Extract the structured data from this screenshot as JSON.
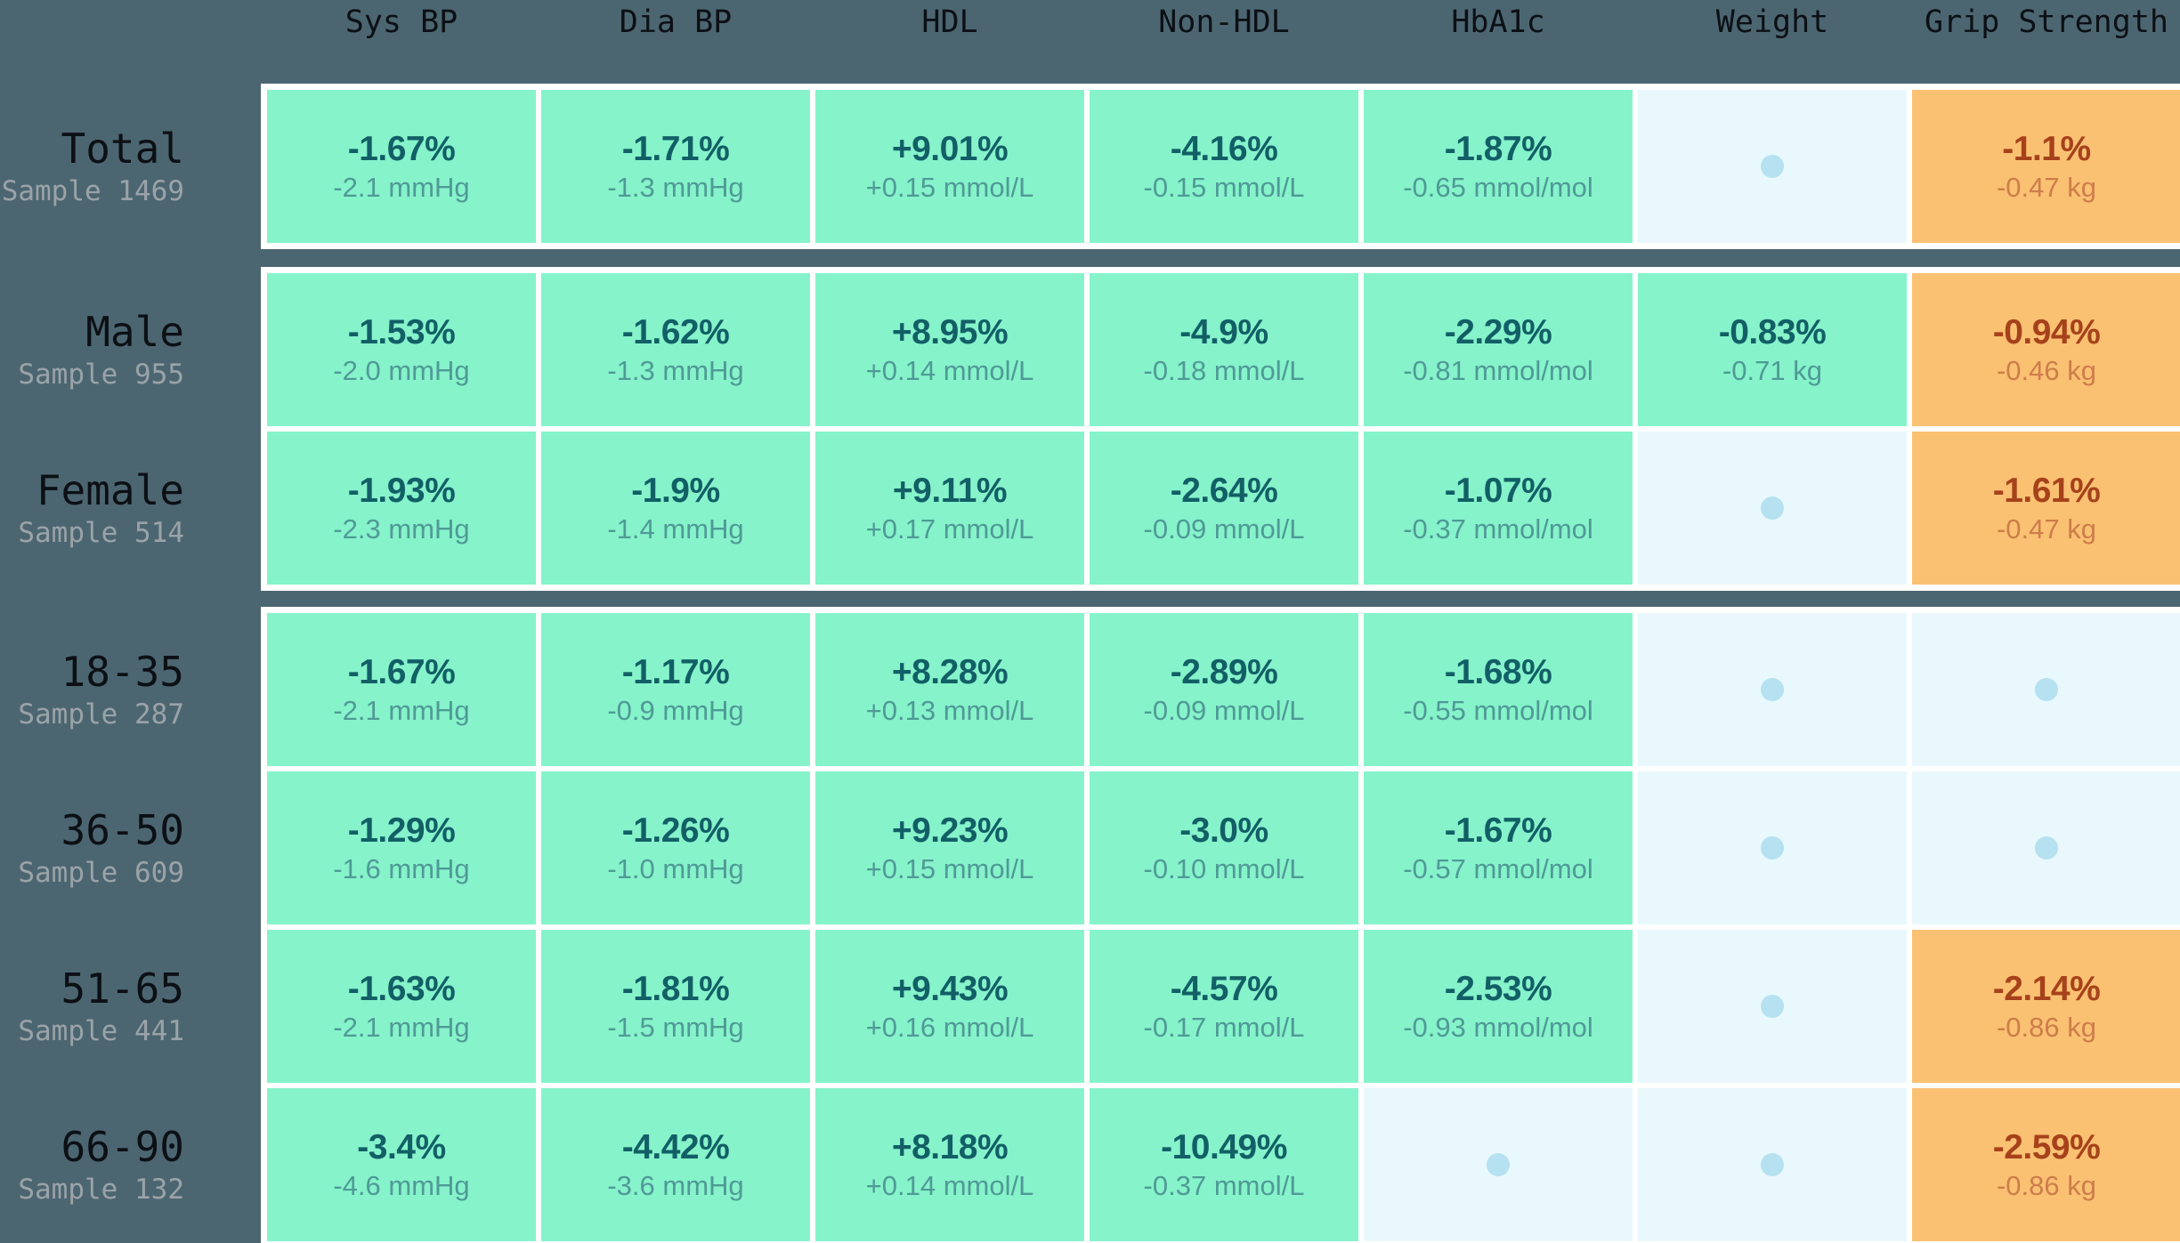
{
  "chart_data": {
    "type": "heatmap",
    "title": "",
    "columns": [
      "Sys BP",
      "Dia BP",
      "HDL",
      "Non-HDL",
      "HbA1c",
      "Weight",
      "Grip Strength"
    ],
    "row_groups": [
      {
        "name": "total",
        "rows": [
          {
            "label": "Total",
            "sample": "Sample 1469",
            "cells": [
              {
                "state": "green",
                "value": "-1.67%",
                "detail": "-2.1 mmHg"
              },
              {
                "state": "green",
                "value": "-1.71%",
                "detail": "-1.3 mmHg"
              },
              {
                "state": "green",
                "value": "+9.01%",
                "detail": "+0.15 mmol/L"
              },
              {
                "state": "green",
                "value": "-4.16%",
                "detail": "-0.15 mmol/L"
              },
              {
                "state": "green",
                "value": "-1.87%",
                "detail": "-0.65 mmol/mol"
              },
              {
                "state": "dot"
              },
              {
                "state": "orange",
                "value": "-1.1%",
                "detail": "-0.47 kg"
              }
            ]
          }
        ]
      },
      {
        "name": "sex",
        "rows": [
          {
            "label": "Male",
            "sample": "Sample 955",
            "cells": [
              {
                "state": "green",
                "value": "-1.53%",
                "detail": "-2.0 mmHg"
              },
              {
                "state": "green",
                "value": "-1.62%",
                "detail": "-1.3 mmHg"
              },
              {
                "state": "green",
                "value": "+8.95%",
                "detail": "+0.14 mmol/L"
              },
              {
                "state": "green",
                "value": "-4.9%",
                "detail": "-0.18 mmol/L"
              },
              {
                "state": "green",
                "value": "-2.29%",
                "detail": "-0.81 mmol/mol"
              },
              {
                "state": "green",
                "value": "-0.83%",
                "detail": "-0.71 kg"
              },
              {
                "state": "orange",
                "value": "-0.94%",
                "detail": "-0.46 kg"
              }
            ]
          },
          {
            "label": "Female",
            "sample": "Sample 514",
            "cells": [
              {
                "state": "green",
                "value": "-1.93%",
                "detail": "-2.3 mmHg"
              },
              {
                "state": "green",
                "value": "-1.9%",
                "detail": "-1.4 mmHg"
              },
              {
                "state": "green",
                "value": "+9.11%",
                "detail": "+0.17 mmol/L"
              },
              {
                "state": "green",
                "value": "-2.64%",
                "detail": "-0.09 mmol/L"
              },
              {
                "state": "green",
                "value": "-1.07%",
                "detail": "-0.37 mmol/mol"
              },
              {
                "state": "dot"
              },
              {
                "state": "orange",
                "value": "-1.61%",
                "detail": "-0.47 kg"
              }
            ]
          }
        ]
      },
      {
        "name": "age-bands",
        "rows": [
          {
            "label": "18-35",
            "sample": "Sample 287",
            "cells": [
              {
                "state": "green",
                "value": "-1.67%",
                "detail": "-2.1 mmHg"
              },
              {
                "state": "green",
                "value": "-1.17%",
                "detail": "-0.9 mmHg"
              },
              {
                "state": "green",
                "value": "+8.28%",
                "detail": "+0.13 mmol/L"
              },
              {
                "state": "green",
                "value": "-2.89%",
                "detail": "-0.09 mmol/L"
              },
              {
                "state": "green",
                "value": "-1.68%",
                "detail": "-0.55 mmol/mol"
              },
              {
                "state": "dot"
              },
              {
                "state": "dot"
              }
            ]
          },
          {
            "label": "36-50",
            "sample": "Sample 609",
            "cells": [
              {
                "state": "green",
                "value": "-1.29%",
                "detail": "-1.6 mmHg"
              },
              {
                "state": "green",
                "value": "-1.26%",
                "detail": "-1.0 mmHg"
              },
              {
                "state": "green",
                "value": "+9.23%",
                "detail": "+0.15 mmol/L"
              },
              {
                "state": "green",
                "value": "-3.0%",
                "detail": "-0.10 mmol/L"
              },
              {
                "state": "green",
                "value": "-1.67%",
                "detail": "-0.57 mmol/mol"
              },
              {
                "state": "dot"
              },
              {
                "state": "dot"
              }
            ]
          },
          {
            "label": "51-65",
            "sample": "Sample 441",
            "cells": [
              {
                "state": "green",
                "value": "-1.63%",
                "detail": "-2.1 mmHg"
              },
              {
                "state": "green",
                "value": "-1.81%",
                "detail": "-1.5 mmHg"
              },
              {
                "state": "green",
                "value": "+9.43%",
                "detail": "+0.16 mmol/L"
              },
              {
                "state": "green",
                "value": "-4.57%",
                "detail": "-0.17 mmol/L"
              },
              {
                "state": "green",
                "value": "-2.53%",
                "detail": "-0.93 mmol/mol"
              },
              {
                "state": "dot"
              },
              {
                "state": "orange",
                "value": "-2.14%",
                "detail": "-0.86 kg"
              }
            ]
          },
          {
            "label": "66-90",
            "sample": "Sample 132",
            "cells": [
              {
                "state": "green",
                "value": "-3.4%",
                "detail": "-4.6 mmHg"
              },
              {
                "state": "green",
                "value": "-4.42%",
                "detail": "-3.6 mmHg"
              },
              {
                "state": "green",
                "value": "+8.18%",
                "detail": "+0.14 mmol/L"
              },
              {
                "state": "green",
                "value": "-10.49%",
                "detail": "-0.37 mmol/L"
              },
              {
                "state": "dot"
              },
              {
                "state": "dot"
              },
              {
                "state": "orange",
                "value": "-2.59%",
                "detail": "-0.86 kg"
              }
            ]
          }
        ]
      }
    ],
    "colors": {
      "background": "#4c6671",
      "cell_green": "#86f3cb",
      "cell_orange": "#fbc173",
      "cell_neutral": "#e9f8fc",
      "neutral_dot": "#b5e1f1",
      "green_value_text": "#125f66",
      "green_detail_text": "#4f9a96",
      "orange_value_text": "#a6421b",
      "orange_detail_text": "#cd7d4a",
      "header_text": "#0c1015",
      "sample_text": "#9aa3a8",
      "grid_white": "#ffffff"
    }
  }
}
